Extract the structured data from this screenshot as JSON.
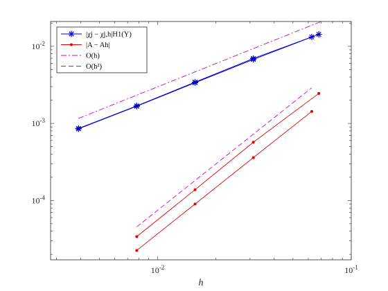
{
  "chart_data": {
    "type": "line",
    "xlabel": "h",
    "ylabel": "",
    "xscale": "log",
    "yscale": "log",
    "xlim": [
      0.0028,
      0.1
    ],
    "ylim": [
      1.7e-05,
      0.021
    ],
    "x_ticks": [
      {
        "value": 0.01,
        "base": "10",
        "exp": "-2"
      },
      {
        "value": 0.1,
        "base": "10",
        "exp": "-1"
      }
    ],
    "y_ticks": [
      {
        "value": 0.0001,
        "base": "10",
        "exp": "-4"
      },
      {
        "value": 0.001,
        "base": "10",
        "exp": "-3"
      },
      {
        "value": 0.01,
        "base": "10",
        "exp": "-2"
      }
    ],
    "grid": false,
    "legend_position": "top-left",
    "series": [
      {
        "name": "|χj − χj,h|H1(Y)",
        "color": "#0000d0",
        "marker": "asterisk",
        "dash": "solid",
        "groups": [
          {
            "x": [
              0.0039,
              0.0078,
              0.0156,
              0.0312,
              0.0625
            ],
            "y": [
              0.00085,
              0.00167,
              0.00337,
              0.00675,
              0.0132
            ]
          },
          {
            "x": [
              0.0039,
              0.0078,
              0.0156,
              0.0312,
              0.068
            ],
            "y": [
              0.00086,
              0.00169,
              0.00343,
              0.00695,
              0.0143
            ]
          }
        ]
      },
      {
        "name": "|A − Ah|",
        "color": "#e00000",
        "marker": "dot",
        "dash": "solid",
        "groups": [
          {
            "x": [
              0.0078,
              0.0156,
              0.0312,
              0.068
            ],
            "y": [
              3.4e-05,
              0.000138,
              0.00057,
              0.00245
            ]
          },
          {
            "x": [
              0.0078,
              0.0156,
              0.0312,
              0.0625
            ],
            "y": [
              2.25e-05,
              9e-05,
              0.00036,
              0.00143
            ]
          }
        ]
      },
      {
        "name": "O(h)",
        "color": "#cc00cc",
        "marker": "none",
        "dash": "dashdot",
        "groups": [
          {
            "x": [
              0.0039,
              0.07
            ],
            "y": [
              0.00116,
              0.021
            ]
          }
        ]
      },
      {
        "name": "O(h²)",
        "color": "#cc00cc",
        "marker": "none",
        "dash": "dashed",
        "groups": [
          {
            "x": [
              0.0078,
              0.0625
            ],
            "y": [
              4.55e-05,
              0.0029
            ]
          }
        ]
      }
    ]
  }
}
